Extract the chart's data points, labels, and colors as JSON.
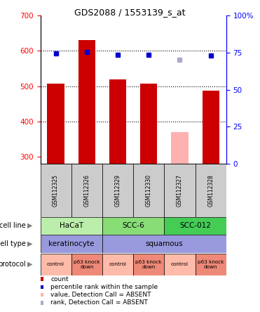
{
  "title": "GDS2088 / 1553139_s_at",
  "samples": [
    "GSM112325",
    "GSM112326",
    "GSM112329",
    "GSM112330",
    "GSM112327",
    "GSM112328"
  ],
  "counts": [
    507,
    631,
    520,
    507,
    370,
    487
  ],
  "percentile_ranks": [
    74.5,
    75.5,
    73.5,
    73.5,
    70,
    73
  ],
  "absent_flags": [
    false,
    false,
    false,
    false,
    true,
    false
  ],
  "absent_rank_flags": [
    false,
    false,
    false,
    false,
    true,
    false
  ],
  "ylim_left": [
    280,
    700
  ],
  "ylim_right": [
    0,
    100
  ],
  "yticks_left": [
    300,
    400,
    500,
    600,
    700
  ],
  "yticks_right": [
    0,
    25,
    50,
    75,
    100
  ],
  "bar_color_normal": "#cc0000",
  "bar_color_absent": "#ffb0b0",
  "dot_color_normal": "#0000cc",
  "dot_color_absent": "#aaaacc",
  "cell_line_labels": [
    "HaCaT",
    "SCC-6",
    "SCC-012"
  ],
  "cell_line_colors": [
    "#bbeeaa",
    "#88dd77",
    "#44cc55"
  ],
  "cell_type_labels": [
    "keratinocyte",
    "squamous"
  ],
  "cell_type_color": "#9999dd",
  "protocol_labels": [
    "control",
    "p63 knock\ndown",
    "control",
    "p63 knock\ndown",
    "control",
    "p63 knock\ndown"
  ],
  "protocol_color_control": "#ffbbaa",
  "protocol_color_knock": "#ee8877",
  "row_labels": [
    "cell line",
    "cell type",
    "protocol"
  ],
  "legend_items": [
    {
      "color": "#cc0000",
      "label": "count"
    },
    {
      "color": "#0000cc",
      "label": "percentile rank within the sample"
    },
    {
      "color": "#ffb0b0",
      "label": "value, Detection Call = ABSENT"
    },
    {
      "color": "#aaaacc",
      "label": "rank, Detection Call = ABSENT"
    }
  ]
}
